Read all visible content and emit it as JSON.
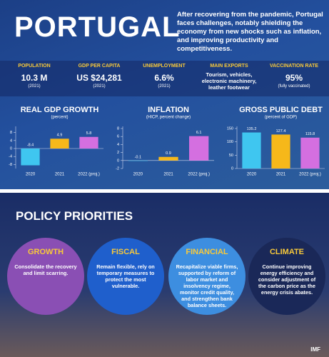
{
  "header": {
    "title": "PORTUGAL",
    "text": "After recovering from the pandemic, Portugal faces challenges, notably shielding the economy from new shocks such as inflation, and improving productivity and competitiveness."
  },
  "stats": [
    {
      "label": "POPULATION",
      "value": "10.3 M",
      "note": "(2021)"
    },
    {
      "label": "GDP PER CAPITA",
      "value": "US $24,281",
      "note": "(2021)"
    },
    {
      "label": "UNEMPLOYMENT",
      "value": "6.6%",
      "note": "(2021)"
    },
    {
      "label": "MAIN EXPORTS",
      "value": "Tourism, vehicles, electronic machinery, leather footwear"
    },
    {
      "label": "VACCINATION RATE",
      "value": "95%",
      "note": "(fully vaccinated)"
    }
  ],
  "chart_data": [
    {
      "type": "bar",
      "title": "REAL GDP GROWTH",
      "subtitle": "(percent)",
      "categories": [
        "2020",
        "2021",
        "2022 (proj.)"
      ],
      "values": [
        -8.4,
        4.9,
        5.8
      ],
      "colors": [
        "#3fc6f0",
        "#f6b81a",
        "#d46fe0"
      ],
      "ylim": [
        -10,
        10
      ],
      "yticks": [
        -8,
        -4,
        0,
        4,
        8
      ]
    },
    {
      "type": "bar",
      "title": "INFLATION",
      "subtitle": "(HICP, percent change)",
      "categories": [
        "2020",
        "2021",
        "2022 (proj.)"
      ],
      "values": [
        -0.1,
        0.9,
        6.1
      ],
      "colors": [
        "#3fc6f0",
        "#f6b81a",
        "#d46fe0"
      ],
      "ylim": [
        -2,
        8
      ],
      "yticks": [
        -2,
        0,
        2,
        4,
        6,
        8
      ]
    },
    {
      "type": "bar",
      "title": "GROSS PUBLIC DEBT",
      "subtitle": "(percent of GDP)",
      "categories": [
        "2020",
        "2021",
        "2022 (proj.)"
      ],
      "values": [
        135.2,
        127.4,
        115.8
      ],
      "colors": [
        "#3fc6f0",
        "#f6b81a",
        "#d46fe0"
      ],
      "ylim": [
        0,
        150
      ],
      "yticks": [
        0,
        50,
        100,
        150
      ]
    }
  ],
  "policy": {
    "title": "POLICY PRIORITIES",
    "items": [
      {
        "title": "GROWTH",
        "text": "Consolidate the recovery and limit scarring."
      },
      {
        "title": "FISCAL",
        "text": "Remain flexible, rely on temporary measures to protect the most vulnerable."
      },
      {
        "title": "FINANCIAL",
        "text": "Recapitalize viable firms, supported by reform of labor market and insolvency regime, monitor credit quality, and strengthen bank balance sheets."
      },
      {
        "title": "CLIMATE",
        "text": "Continue improving energy efficiency and consider adjustment of the carbon price as the energy crisis abates."
      }
    ]
  },
  "footer": "IMF"
}
